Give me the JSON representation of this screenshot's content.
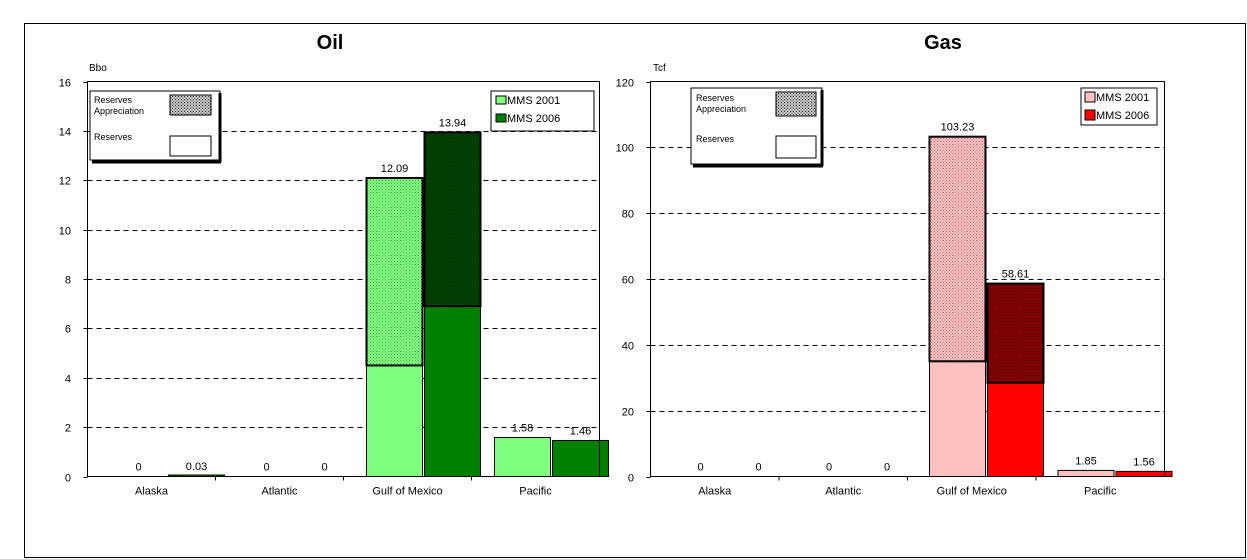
{
  "colors": {
    "oil_2001": "#80ff80",
    "oil_2006": "#008000",
    "gas_2001": "#ffc0c0",
    "gas_2006": "#ff0000",
    "grid": "#000000"
  },
  "chart_data": [
    {
      "type": "bar",
      "subtype": "stacked-grouped",
      "title": "Oil",
      "ylabel": "Bbo",
      "ylim": [
        0,
        16
      ],
      "yticks": [
        0,
        2,
        4,
        6,
        8,
        10,
        12,
        14,
        16
      ],
      "grid": "horizontal-dashed",
      "categories": [
        "Alaska",
        "Atlantic",
        "Gulf of Mexico",
        "Pacific"
      ],
      "series": [
        {
          "name": "MMS 2001",
          "color": "#80ff80",
          "reserves": [
            0,
            0,
            4.5,
            1.58
          ],
          "reserves_appreciation": [
            0,
            0,
            7.59,
            0
          ],
          "totals": [
            0,
            0,
            12.09,
            1.58
          ],
          "total_labels": [
            "0",
            "0",
            "12.09",
            "1.58"
          ]
        },
        {
          "name": "MMS 2006",
          "color": "#008000",
          "reserves": [
            0.03,
            0,
            6.9,
            1.46
          ],
          "reserves_appreciation": [
            0,
            0,
            7.04,
            0
          ],
          "totals": [
            0.03,
            0,
            13.94,
            1.46
          ],
          "total_labels": [
            "0.03",
            "0",
            "13.94",
            "1.46"
          ]
        }
      ],
      "pattern_legend": [
        "Reserves Appreciation",
        "Reserves"
      ],
      "legend_position": "top-right"
    },
    {
      "type": "bar",
      "subtype": "stacked-grouped",
      "title": "Gas",
      "ylabel": "Tcf",
      "ylim": [
        0,
        120
      ],
      "yticks": [
        0,
        20,
        40,
        60,
        80,
        100,
        120
      ],
      "grid": "horizontal-dashed",
      "categories": [
        "Alaska",
        "Atlantic",
        "Gulf of Mexico",
        "Pacific"
      ],
      "series": [
        {
          "name": "MMS 2001",
          "color": "#ffc0c0",
          "reserves": [
            0,
            0,
            35,
            1.85
          ],
          "reserves_appreciation": [
            0,
            0,
            68.23,
            0
          ],
          "totals": [
            0,
            0,
            103.23,
            1.85
          ],
          "total_labels": [
            "0",
            "0",
            "103.23",
            "1.85"
          ]
        },
        {
          "name": "MMS 2006",
          "color": "#ff0000",
          "reserves": [
            0,
            0,
            28.5,
            1.56
          ],
          "reserves_appreciation": [
            0,
            0,
            30.11,
            0
          ],
          "totals": [
            0,
            0,
            58.61,
            1.56
          ],
          "total_labels": [
            "0",
            "0",
            "58.61",
            "1.56"
          ]
        }
      ],
      "pattern_legend": [
        "Reserves Appreciation",
        "Reserves"
      ],
      "legend_position": "top-right"
    }
  ]
}
